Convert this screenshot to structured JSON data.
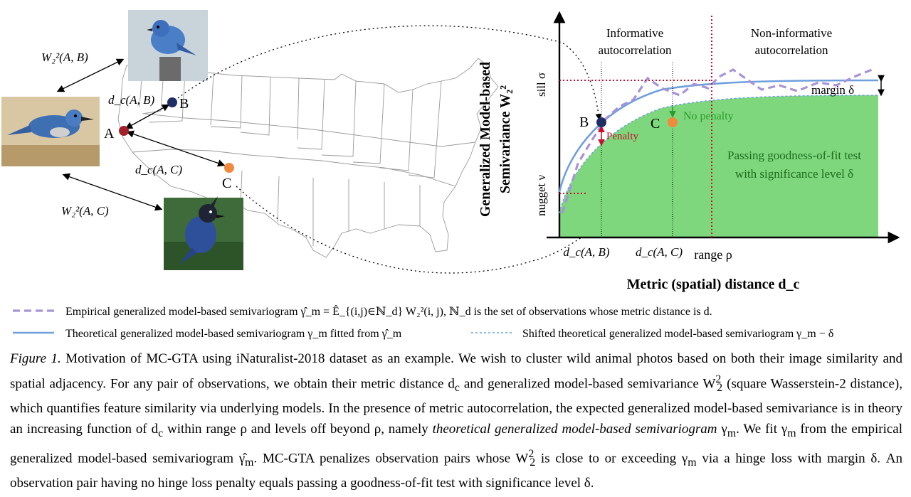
{
  "figure": {
    "map": {
      "points": {
        "a": "A",
        "b": "B",
        "c": "C"
      },
      "labels": {
        "w_ab": "W₂²(A, B)",
        "w_ac": "W₂²(A, C)",
        "dc_ab": "d_c(A, B)",
        "dc_ac": "d_c(A, C)"
      },
      "photos": {
        "a": "scrub jay photo",
        "b": "mountain bluebird photo",
        "c": "Steller's jay photo"
      }
    },
    "plot": {
      "ylabel_line1": "Generalized Model-based",
      "ylabel_line2": "Semivariance W₂²",
      "xlabel": "Metric (spatial) distance d_c",
      "sill_label": "sill σ",
      "nugget_label": "nugget ν",
      "range_label": "range ρ",
      "informative_line1": "Informative",
      "informative_line2": "autocorrelation",
      "noninformative_line1": "Non-informative",
      "noninformative_line2": "autocorrelation",
      "margin_label": "margin δ",
      "penalty_label": "Penalty",
      "no_penalty_label": "No penalty",
      "pass_line1": "Passing goodness-of-fit test",
      "pass_line2": "with significance level δ",
      "tick_ab": "d_c(A, B)",
      "tick_ac": "d_c(A, C)",
      "point_b": "B",
      "point_c": "C",
      "colors": {
        "empirical": "#a892d8",
        "theoretical": "#6f9fdc",
        "shifted": "#6f9fdc",
        "fill": "#7ed77c",
        "penalty": "#c8102e",
        "no_penalty": "#2e9a2e",
        "point_a": "#a31f2a",
        "point_b": "#1f2f66",
        "point_c": "#f08a3c",
        "range_line": "#c8102e"
      }
    }
  },
  "legend": {
    "empirical": "Empirical generalized model-based semivariogram γ̂_m = Ê_{(i,j)∈ℕ_d} W₂²(i, j), ℕ_d is the set of observations whose metric distance is d.",
    "theoretical": "Theoretical generalized model-based semivariogram γ_m fitted from γ̂_m",
    "shifted": "Shifted theoretical generalized model-based semivariogram γ_m − δ"
  },
  "caption": {
    "label": "Figure 1.",
    "seg1": " Motivation of MC-GTA using iNaturalist-2018 dataset as an example. We wish to cluster wild animal photos based on both their image similarity and spatial adjacency. For any pair of observations, we obtain their metric distance d",
    "seg1_sub": "c",
    "seg2": " and generalized model-based semivariance W",
    "seg2_sup": "2",
    "seg2_sub": "2",
    "seg3": " (square Wasserstein-2 distance), which quantifies feature similarity via underlying models. In the presence of metric autocorrelation, the expected generalized model-based semivariance is in theory an increasing function of d",
    "seg3_sub": "c",
    "seg4": " within range ρ and levels off beyond ρ, namely ",
    "seg4_italic": "theoretical generalized model-based semivariogram",
    "seg5": " γ",
    "seg5_sub": "m",
    "seg6": ". We fit γ",
    "seg6_sub": "m",
    "seg7": " from the empirical generalized model-based semivariogram γ̂",
    "seg7_sub": "m",
    "seg8": ". MC-GTA penalizes observation pairs whose W",
    "seg8_sup": "2",
    "seg8_sub": "2",
    "seg9": " is close to or exceeding γ",
    "seg9_sub": "m",
    "seg10": " via a hinge loss with margin δ. An observation pair having no hinge loss penalty equals passing a goodness-of-fit test with significance level δ."
  }
}
